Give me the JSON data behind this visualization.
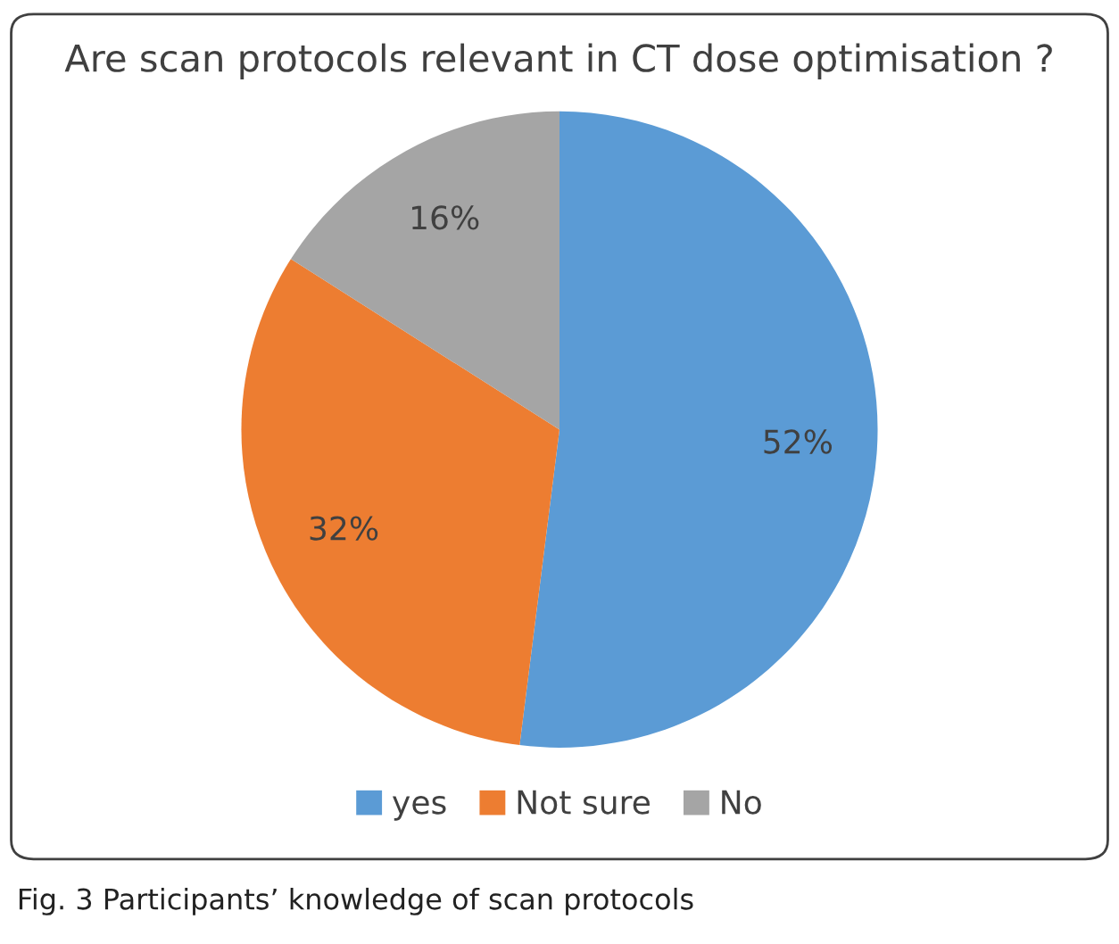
{
  "chart_data": {
    "type": "pie",
    "title": "Are scan protocols relevant in CT dose optimisation ?",
    "categories": [
      "yes",
      "Not sure",
      "No"
    ],
    "values": [
      52,
      32,
      16
    ],
    "colors": [
      "#5b9bd5",
      "#ed7d31",
      "#a5a5a5"
    ],
    "value_labels": [
      "52%",
      "32%",
      "16%"
    ],
    "legend": "bottom",
    "annotations": [
      "Fig. 3 Participants’ knowledge of scan protocols"
    ]
  }
}
